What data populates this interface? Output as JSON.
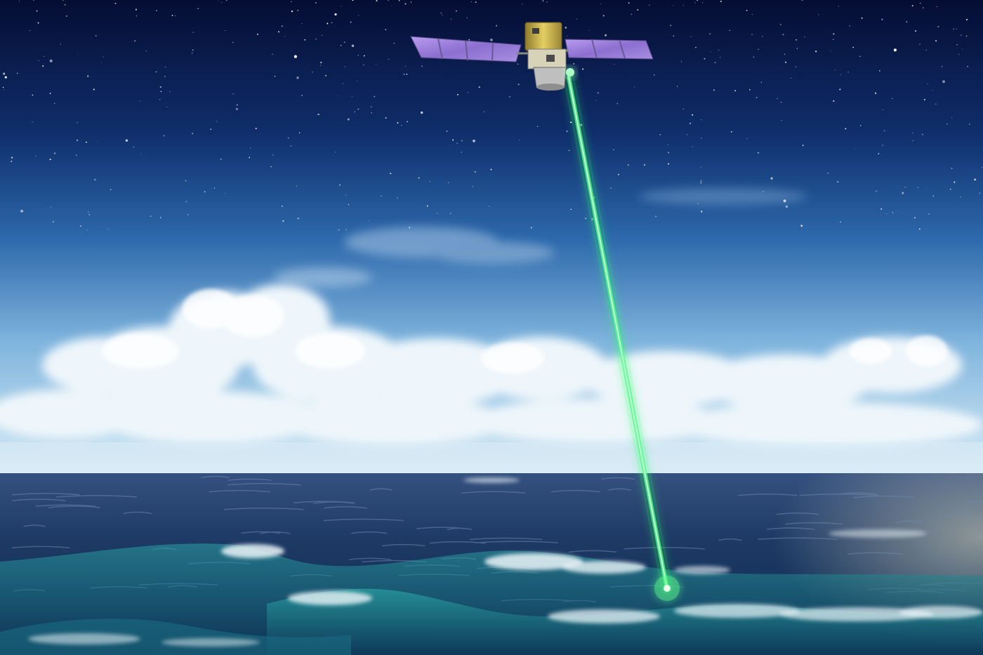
{
  "scene": {
    "subject": "satellite-laser-over-ocean",
    "colors": {
      "sky_top": "#07113a",
      "sky_mid": "#2f6fb2",
      "sky_horizon": "#cfe6f4",
      "ocean_far": "#2c4a78",
      "ocean_near": "#0f2b4e",
      "wave_teal": "#1f8a8f",
      "foam": "#e8f3f7",
      "laser": "#3dff7a",
      "solar_panel": "#9b7fd6",
      "satellite_body": "#c9b24a"
    },
    "icons": [
      "satellite-icon",
      "laser-beam",
      "stars",
      "clouds",
      "waves"
    ]
  }
}
